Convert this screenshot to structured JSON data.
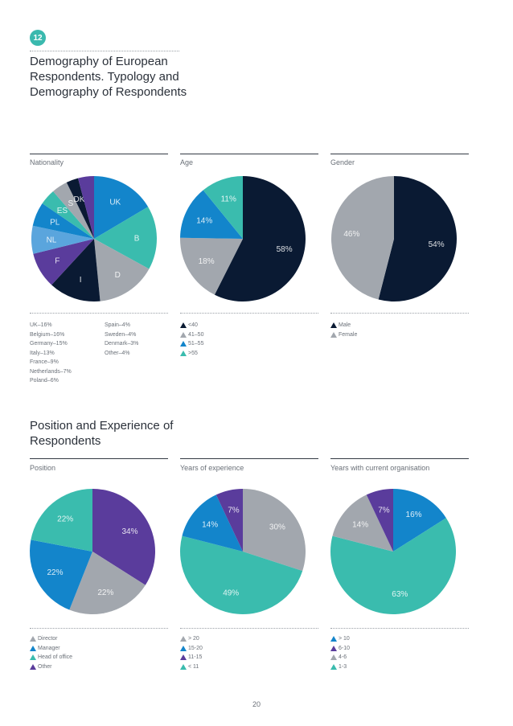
{
  "header": {
    "badge": "12",
    "title": "Demography of European Respondents. Typology and Demography of Respondents"
  },
  "section2_title": "Position and Experience of Respondents",
  "page_number": "20",
  "colors": {
    "navy": "#0a1a33",
    "teal": "#3abcae",
    "gray": "#a2a7ae",
    "blue": "#1385cb",
    "purple": "#5a3c9c",
    "lightblue": "#5aa5dd",
    "darkgray": "#565a61"
  },
  "chart_data": [
    {
      "id": "nationality",
      "type": "pie",
      "title": "Nationality",
      "slices": [
        {
          "label": "UK",
          "value": 16,
          "color": "#1385cb"
        },
        {
          "label": "B",
          "value": 16,
          "color": "#3abcae"
        },
        {
          "label": "D",
          "value": 15,
          "color": "#a2a7ae"
        },
        {
          "label": "I",
          "value": 13,
          "color": "#0a1a33"
        },
        {
          "label": "F",
          "value": 9,
          "color": "#5a3c9c"
        },
        {
          "label": "NL",
          "value": 7,
          "color": "#5aa5dd"
        },
        {
          "label": "PL",
          "value": 6,
          "color": "#1385cb"
        },
        {
          "label": "ES",
          "value": 4,
          "color": "#3abcae"
        },
        {
          "label": "S",
          "value": 4,
          "color": "#a2a7ae"
        },
        {
          "label": "DK",
          "value": 3,
          "color": "#0a1a33"
        },
        {
          "label": "",
          "value": 4,
          "color": "#5a3c9c"
        }
      ],
      "legend_text": [
        [
          "UK–16%",
          "Belgium–16%",
          "Germany–15%",
          "Italy–13%",
          "France–9%",
          "Netherlands–7%",
          "Poland–6%"
        ],
        [
          "Spain–4%",
          "Sweden–4%",
          "Denmark–3%",
          "Other–4%"
        ]
      ]
    },
    {
      "id": "age",
      "type": "pie",
      "title": "Age",
      "slices": [
        {
          "label": "58%",
          "value": 58,
          "color": "#0a1a33"
        },
        {
          "label": "18%",
          "value": 18,
          "color": "#a2a7ae"
        },
        {
          "label": "14%",
          "value": 14,
          "color": "#1385cb"
        },
        {
          "label": "11%",
          "value": 11,
          "color": "#3abcae"
        }
      ],
      "legend": [
        {
          "label": "<40",
          "color": "#0a1a33"
        },
        {
          "label": "41–50",
          "color": "#a2a7ae"
        },
        {
          "label": "51–55",
          "color": "#1385cb"
        },
        {
          "label": ">55",
          "color": "#3abcae"
        }
      ]
    },
    {
      "id": "gender",
      "type": "pie",
      "title": "Gender",
      "slices": [
        {
          "label": "54%",
          "value": 54,
          "color": "#0a1a33"
        },
        {
          "label": "46%",
          "value": 46,
          "color": "#a2a7ae"
        }
      ],
      "legend": [
        {
          "label": "Male",
          "color": "#0a1a33"
        },
        {
          "label": "Female",
          "color": "#a2a7ae"
        }
      ]
    },
    {
      "id": "position",
      "type": "pie",
      "title": "Position",
      "slices": [
        {
          "label": "34%",
          "value": 34,
          "color": "#5a3c9c"
        },
        {
          "label": "22%",
          "value": 22,
          "color": "#a2a7ae"
        },
        {
          "label": "22%",
          "value": 22,
          "color": "#1385cb"
        },
        {
          "label": "22%",
          "value": 22,
          "color": "#3abcae"
        }
      ],
      "legend": [
        {
          "label": "Director",
          "color": "#a2a7ae"
        },
        {
          "label": "Manager",
          "color": "#1385cb"
        },
        {
          "label": "Head of office",
          "color": "#3abcae"
        },
        {
          "label": "Other",
          "color": "#5a3c9c"
        }
      ]
    },
    {
      "id": "experience",
      "type": "pie",
      "title": "Years of experience",
      "slices": [
        {
          "label": "30%",
          "value": 30,
          "color": "#a2a7ae"
        },
        {
          "label": "49%",
          "value": 49,
          "color": "#3abcae"
        },
        {
          "label": "14%",
          "value": 14,
          "color": "#1385cb"
        },
        {
          "label": "7%",
          "value": 7,
          "color": "#5a3c9c"
        }
      ],
      "legend": [
        {
          "label": "> 20",
          "color": "#a2a7ae"
        },
        {
          "label": "15-20",
          "color": "#1385cb"
        },
        {
          "label": "11-15",
          "color": "#5a3c9c"
        },
        {
          "label": "< 11",
          "color": "#3abcae"
        }
      ]
    },
    {
      "id": "organisation",
      "type": "pie",
      "title": "Years with current organisation",
      "slices": [
        {
          "label": "16%",
          "value": 16,
          "color": "#1385cb"
        },
        {
          "label": "63%",
          "value": 63,
          "color": "#3abcae"
        },
        {
          "label": "14%",
          "value": 14,
          "color": "#a2a7ae"
        },
        {
          "label": "7%",
          "value": 7,
          "color": "#5a3c9c"
        }
      ],
      "legend": [
        {
          "label": "> 10",
          "color": "#1385cb"
        },
        {
          "label": "6-10",
          "color": "#5a3c9c"
        },
        {
          "label": "4-6",
          "color": "#a2a7ae"
        },
        {
          "label": "1-3",
          "color": "#3abcae"
        }
      ]
    }
  ]
}
